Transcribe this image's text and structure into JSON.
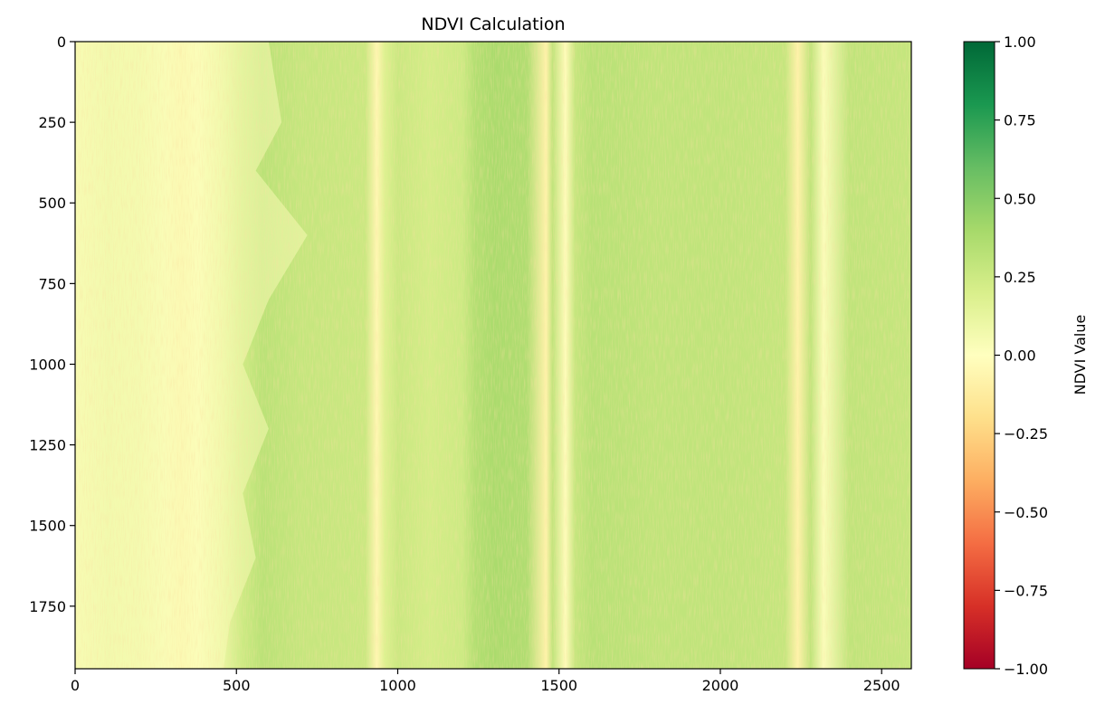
{
  "chart_data": {
    "type": "heatmap",
    "title": "NDVI Calculation",
    "xlim": [
      0,
      2592
    ],
    "ylim": [
      1944,
      0
    ],
    "x_ticks": [
      0,
      500,
      1000,
      1500,
      2000,
      2500
    ],
    "y_ticks": [
      0,
      250,
      500,
      750,
      1000,
      1250,
      1500,
      1750
    ],
    "colormap": "RdYlGn",
    "colorbar": {
      "label": "NDVI Value",
      "range": [
        -1.0,
        1.0
      ],
      "ticks": [
        "1.00",
        "0.75",
        "0.50",
        "0.25",
        "0.00",
        "−0.25",
        "−0.50",
        "−0.75",
        "−1.00"
      ],
      "tick_values": [
        1.0,
        0.75,
        0.5,
        0.25,
        0.0,
        -0.25,
        -0.5,
        -0.75,
        -1.0
      ]
    },
    "column_profile": {
      "x": [
        0,
        100,
        200,
        280,
        330,
        380,
        450,
        520,
        580,
        700,
        900,
        935,
        960,
        1000,
        1100,
        1200,
        1240,
        1300,
        1400,
        1460,
        1480,
        1520,
        1550,
        1600,
        1800,
        2000,
        2200,
        2240,
        2280,
        2320,
        2400,
        2592
      ],
      "ndvi": [
        0.05,
        0.1,
        0.08,
        0.02,
        -0.05,
        0.0,
        0.1,
        0.25,
        0.32,
        0.28,
        0.26,
        -0.05,
        0.18,
        0.26,
        0.22,
        0.25,
        0.35,
        0.38,
        0.36,
        -0.08,
        0.3,
        -0.02,
        0.28,
        0.33,
        0.3,
        0.3,
        0.28,
        -0.08,
        0.3,
        0.02,
        0.3,
        0.28
      ]
    },
    "colors": {
      "red": "#a50026",
      "orange": "#f46d43",
      "yellow": "#ffffbf",
      "lightgreen": "#a6d96a",
      "green": "#006837"
    }
  }
}
